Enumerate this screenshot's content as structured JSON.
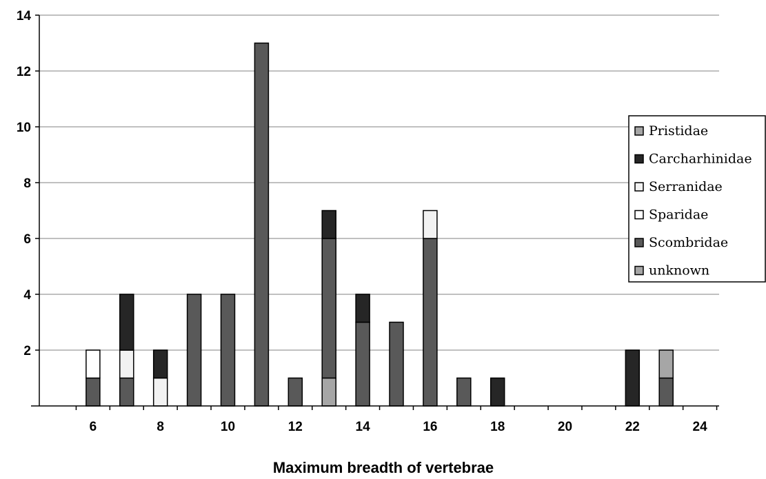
{
  "chart_data": {
    "type": "bar",
    "stacked": true,
    "xlabel": "Maximum breadth of vertebrae",
    "ylabel": "",
    "ylim": [
      0,
      14
    ],
    "yticks": [
      2,
      4,
      6,
      8,
      10,
      12,
      14
    ],
    "xticks": [
      6,
      8,
      10,
      12,
      14,
      16,
      18,
      20,
      22,
      24
    ],
    "grid": true,
    "legend_position": "right",
    "categories": [
      6,
      7,
      8,
      9,
      10,
      11,
      12,
      13,
      14,
      15,
      16,
      17,
      18,
      22,
      23
    ],
    "series": [
      {
        "name": "unknown",
        "color": "#a6a6a6",
        "values": [
          0,
          0,
          0,
          0,
          0,
          0,
          0,
          1,
          0,
          0,
          0,
          0,
          0,
          0,
          0
        ]
      },
      {
        "name": "Scombridae",
        "color": "#595959",
        "values": [
          1,
          1,
          0,
          4,
          4,
          13,
          1,
          5,
          3,
          3,
          6,
          1,
          0,
          0,
          1
        ]
      },
      {
        "name": "Sparidae",
        "color": "#ffffff",
        "values": [
          1,
          0,
          0,
          0,
          0,
          0,
          0,
          0,
          0,
          0,
          0,
          0,
          0,
          0,
          0
        ]
      },
      {
        "name": "Serranidae",
        "color": "#f2f2f2",
        "values": [
          0,
          1,
          1,
          0,
          0,
          0,
          0,
          0,
          0,
          0,
          1,
          0,
          0,
          0,
          0
        ]
      },
      {
        "name": "Carcharhinidae",
        "color": "#262626",
        "values": [
          0,
          2,
          1,
          0,
          0,
          0,
          0,
          1,
          1,
          0,
          0,
          0,
          1,
          2,
          0
        ]
      },
      {
        "name": "Pristidae",
        "color": "#a6a6a6",
        "values": [
          0,
          0,
          0,
          0,
          0,
          0,
          0,
          0,
          0,
          0,
          0,
          0,
          0,
          0,
          1
        ]
      }
    ],
    "legend_order": [
      "Pristidae",
      "Carcharhinidae",
      "Serranidae",
      "Sparidae",
      "Scombridae",
      "unknown"
    ]
  }
}
